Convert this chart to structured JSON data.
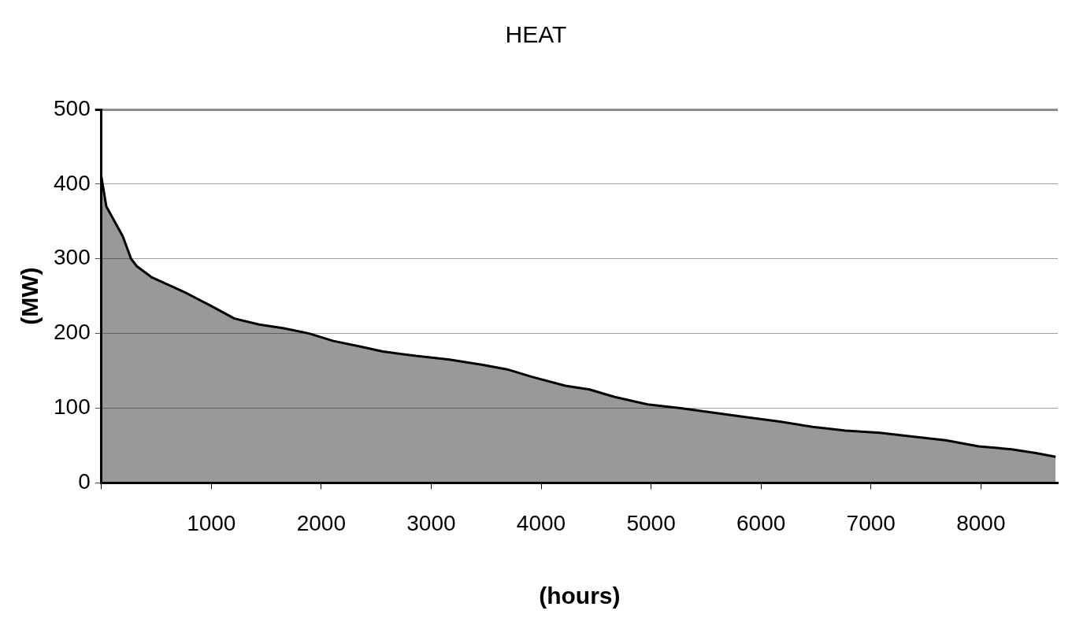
{
  "chart_data": {
    "type": "area",
    "title": "HEAT",
    "xlabel": "(hours)",
    "ylabel": "(MW)",
    "x": [
      0,
      45,
      120,
      195,
      270,
      323,
      460,
      610,
      760,
      985,
      1210,
      1436,
      1660,
      1890,
      2110,
      2340,
      2560,
      2860,
      3165,
      3470,
      3690,
      3915,
      4220,
      4440,
      4670,
      4970,
      5270,
      5570,
      5870,
      6170,
      6470,
      6770,
      7080,
      7375,
      7680,
      7980,
      8280,
      8500,
      8680
    ],
    "series": [
      {
        "color": "#000000",
        "values": [
          410,
          370,
          350,
          330,
          300,
          290,
          275,
          265,
          255,
          238,
          220,
          212,
          207,
          200,
          190,
          183,
          176,
          170,
          165,
          158,
          152,
          142,
          130,
          125,
          115,
          105,
          100,
          94,
          88,
          82,
          75,
          70,
          67,
          62,
          57,
          49,
          45,
          40,
          35
        ]
      }
    ],
    "xlim": [
      0,
      8700
    ],
    "xticks": [
      {
        "value": 0,
        "label": null
      },
      1000,
      2000,
      3000,
      4000,
      5000,
      6000,
      7000,
      8000
    ],
    "ylim": [
      0,
      500
    ],
    "yticks": [
      0,
      100,
      200,
      300,
      400,
      500
    ],
    "grid": "y",
    "legend": false
  }
}
